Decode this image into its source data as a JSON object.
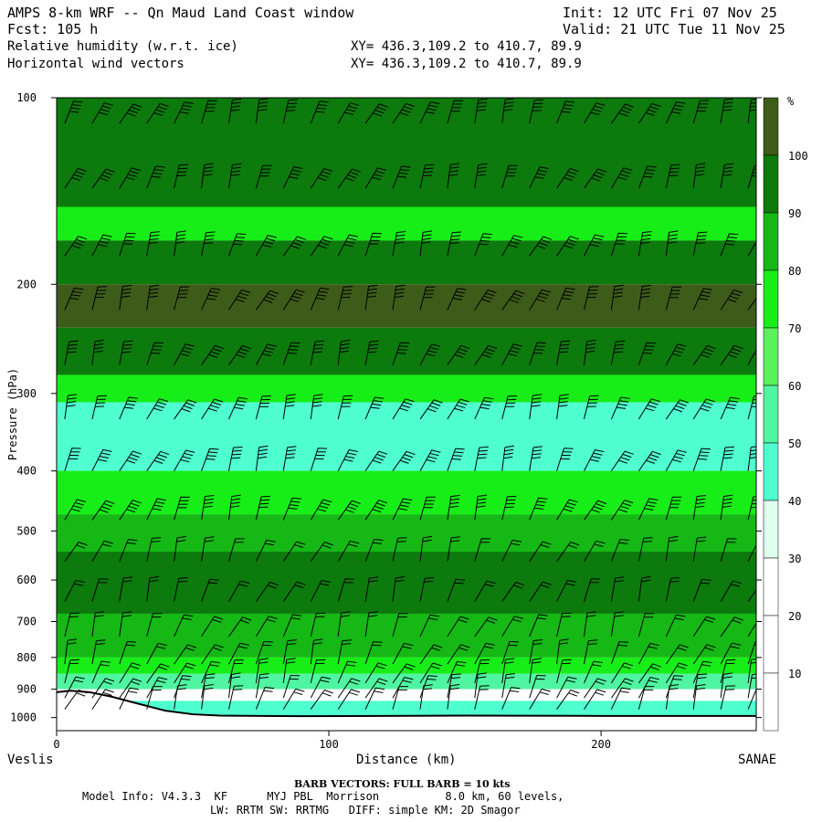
{
  "header": {
    "title": "AMPS 8-km WRF -- Qn Maud Land Coast window",
    "init": "Init: 12 UTC Fri 07 Nov 25",
    "fcst": "Fcst: 105 h",
    "valid": "Valid: 21 UTC Tue 11 Nov 25",
    "field1": "Relative humidity (w.r.t. ice)",
    "xy1": "XY= 436.3,109.2 to 410.7, 89.9",
    "field2": "Horizontal wind vectors",
    "xy2": "XY= 436.3,109.2 to 410.7, 89.9"
  },
  "footer": {
    "left_label": "Veslis",
    "right_label": "SANAE",
    "barb_note": "BARB VECTORS: FULL BARB = 10 kts",
    "model_line1": "Model Info: V4.3.3  KF      MYJ PBL  Morrison          8.0 km, 60 levels,",
    "model_line2": "LW: RRTM SW: RRTMG   DIFF: simple KM: 2D Smagor"
  },
  "colors": {
    "c0": "#ffffff",
    "c1": "#ffffff",
    "c2": "#ffffff",
    "c3": "#dfffef",
    "c4": "#4fffd0",
    "c5": "#4ff5a0",
    "c6": "#5af25a",
    "c7": "#17ee17",
    "c8": "#15b815",
    "c9": "#0c7a0c",
    "c10": "#3d5c19"
  },
  "chart_data": {
    "type": "heatmap",
    "title": "Relative humidity (w.r.t. ice)",
    "xlabel": "Distance (km)",
    "ylabel": "Pressure (hPa)",
    "xlim": [
      0,
      257
    ],
    "ylim": [
      1050,
      100
    ],
    "y_scale": "log",
    "x_ticks": [
      0,
      100,
      200
    ],
    "y_ticks": [
      100,
      200,
      300,
      400,
      500,
      600,
      700,
      800,
      900,
      1000
    ],
    "colorbar": {
      "unit": "%",
      "levels": [
        10,
        20,
        30,
        40,
        50,
        60,
        70,
        80,
        90,
        100
      ]
    },
    "rh_profiles_km": [
      0,
      60,
      100,
      160,
      200,
      257
    ],
    "rh_layers": [
      {
        "p_top": 100,
        "p_bot": 150,
        "rh": 95
      },
      {
        "p_top": 150,
        "p_bot": 170,
        "rh": 75
      },
      {
        "p_top": 170,
        "p_bot": 200,
        "rh": 90
      },
      {
        "p_top": 200,
        "p_bot": 235,
        "rh": 100
      },
      {
        "p_top": 235,
        "p_bot": 280,
        "rh": 95
      },
      {
        "p_top": 280,
        "p_bot": 310,
        "rh": 75
      },
      {
        "p_top": 310,
        "p_bot": 400,
        "rh": 45
      },
      {
        "p_top": 400,
        "p_bot": 470,
        "rh": 72
      },
      {
        "p_top": 470,
        "p_bot": 540,
        "rh": 85
      },
      {
        "p_top": 540,
        "p_bot": 680,
        "rh": 92
      },
      {
        "p_top": 680,
        "p_bot": 800,
        "rh": 85
      },
      {
        "p_top": 800,
        "p_bot": 850,
        "rh": 75
      },
      {
        "p_top": 850,
        "p_bot": 900,
        "rh": 55
      },
      {
        "p_top": 900,
        "p_bot": 940,
        "rh": 25
      },
      {
        "p_top": 940,
        "p_bot": 1000,
        "rh": 40
      }
    ],
    "terrain": {
      "x_km": [
        0,
        5,
        12,
        20,
        30,
        40,
        50,
        60,
        75,
        90,
        120,
        150,
        200,
        257
      ],
      "p_hPa": [
        910,
        905,
        910,
        925,
        950,
        975,
        988,
        993,
        994,
        995,
        994,
        993,
        994,
        994
      ]
    },
    "wind_barbs": "full barb = 10 kts"
  }
}
